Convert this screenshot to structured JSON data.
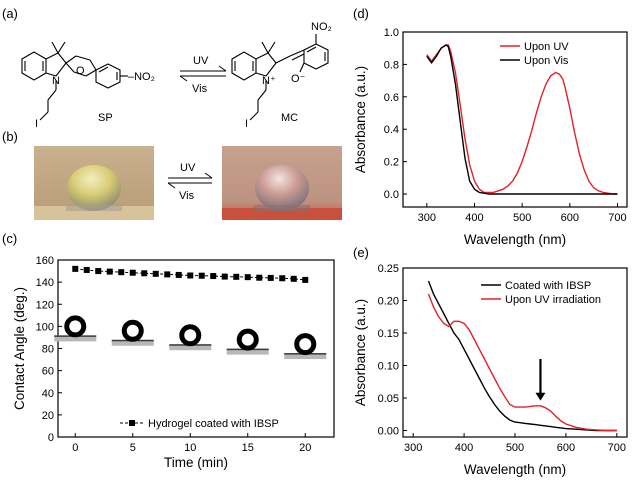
{
  "panels": {
    "a": {
      "label": "(a)",
      "uv_label": "UV",
      "vis_label": "Vis",
      "sp_label": "SP",
      "mc_label": "MC",
      "iodine": "I",
      "nitrogen": "N",
      "oxygen": "O",
      "no2": "NO₂",
      "no2_sp": "–NO₂",
      "n_plus": "N⁺",
      "o_minus": "O⁻"
    },
    "b": {
      "label": "(b)",
      "uv_label": "UV",
      "vis_label": "Vis"
    },
    "c": {
      "label": "(c)"
    },
    "d": {
      "label": "(d)"
    },
    "e": {
      "label": "(e)"
    }
  },
  "colors": {
    "red": "#e3212b",
    "black": "#000000",
    "photo_bg_left": "#c4aa86",
    "photo_bg_right": "#c09a86",
    "substrate_right": "#c8503c"
  },
  "chart_data": [
    {
      "id": "c",
      "type": "scatter",
      "xlabel": "Time (min)",
      "ylabel": "Contact Angle (deg.)",
      "xlim": [
        -1.5,
        22.5
      ],
      "ylim": [
        0,
        160
      ],
      "xticks": [
        0,
        5,
        10,
        15,
        20
      ],
      "yticks": [
        0,
        20,
        40,
        60,
        80,
        100,
        120,
        140,
        160
      ],
      "series": [
        {
          "name": "Hydrogel coated with IBSP",
          "color": "#000000",
          "marker": "square",
          "line": "dashed",
          "x": [
            0,
            1,
            2,
            3,
            4,
            5,
            6,
            7,
            8,
            9,
            10,
            11,
            12,
            13,
            14,
            15,
            16,
            17,
            18,
            19,
            20
          ],
          "y": [
            152,
            151,
            150,
            149.5,
            149,
            148.5,
            148,
            147.5,
            147,
            146.5,
            146,
            145.8,
            145.5,
            145,
            144.8,
            144.5,
            144,
            143.8,
            143.5,
            143,
            142
          ]
        }
      ],
      "legend_position": "bottom-right",
      "droplet_insets": 5
    },
    {
      "id": "d",
      "type": "line",
      "xlabel": "Wavelength (nm)",
      "ylabel": "Absorbance (a.u.)",
      "xlim": [
        250,
        720
      ],
      "ylim": [
        -0.08,
        1.0
      ],
      "xticks": [
        300,
        400,
        500,
        600,
        700
      ],
      "yticks": [
        0.0,
        0.2,
        0.4,
        0.6,
        0.8,
        1.0
      ],
      "series": [
        {
          "name": "Upon UV",
          "color": "#e3212b",
          "x": [
            300,
            310,
            320,
            330,
            340,
            345,
            350,
            360,
            370,
            380,
            390,
            400,
            410,
            420,
            430,
            440,
            450,
            460,
            470,
            480,
            490,
            500,
            510,
            520,
            530,
            540,
            550,
            560,
            570,
            578,
            585,
            590,
            600,
            610,
            620,
            630,
            640,
            650,
            660,
            670,
            680,
            690,
            700
          ],
          "y": [
            0.86,
            0.82,
            0.86,
            0.9,
            0.92,
            0.92,
            0.88,
            0.75,
            0.55,
            0.34,
            0.18,
            0.08,
            0.03,
            0.01,
            0.01,
            0.01,
            0.02,
            0.03,
            0.05,
            0.08,
            0.13,
            0.2,
            0.29,
            0.39,
            0.5,
            0.6,
            0.68,
            0.73,
            0.75,
            0.74,
            0.71,
            0.66,
            0.53,
            0.38,
            0.25,
            0.15,
            0.08,
            0.04,
            0.02,
            0.01,
            0.005,
            0.0,
            0.0
          ]
        },
        {
          "name": "Upon Vis",
          "color": "#000000",
          "x": [
            300,
            310,
            320,
            330,
            340,
            345,
            350,
            360,
            370,
            380,
            390,
            400,
            410,
            420,
            430,
            450,
            500,
            550,
            600,
            650,
            700
          ],
          "y": [
            0.85,
            0.81,
            0.85,
            0.9,
            0.92,
            0.91,
            0.85,
            0.68,
            0.45,
            0.22,
            0.08,
            0.03,
            0.01,
            0.005,
            0.0,
            0.0,
            0.0,
            0.0,
            0.0,
            0.0,
            0.0
          ]
        }
      ],
      "legend_position": "top-right"
    },
    {
      "id": "e",
      "type": "line",
      "xlabel": "Wavelength (nm)",
      "ylabel": "Absorbance (a.u.)",
      "xlim": [
        280,
        720
      ],
      "ylim": [
        -0.01,
        0.25
      ],
      "xticks": [
        300,
        400,
        500,
        600,
        700
      ],
      "yticks": [
        0.0,
        0.05,
        0.1,
        0.15,
        0.2,
        0.25
      ],
      "series": [
        {
          "name": "Coated with IBSP",
          "color": "#000000",
          "x": [
            330,
            340,
            350,
            360,
            370,
            380,
            390,
            400,
            410,
            420,
            430,
            440,
            450,
            460,
            470,
            480,
            490,
            500,
            510,
            520,
            530,
            540,
            550,
            560,
            570,
            580,
            590,
            600,
            620,
            640,
            660,
            680,
            700
          ],
          "y": [
            0.23,
            0.21,
            0.195,
            0.18,
            0.165,
            0.15,
            0.14,
            0.125,
            0.11,
            0.095,
            0.08,
            0.065,
            0.052,
            0.04,
            0.03,
            0.022,
            0.016,
            0.013,
            0.012,
            0.011,
            0.01,
            0.009,
            0.008,
            0.007,
            0.006,
            0.005,
            0.004,
            0.003,
            0.002,
            0.001,
            0.0,
            0.0,
            0.0
          ]
        },
        {
          "name": "Upon UV irradiation",
          "color": "#e3212b",
          "x": [
            330,
            340,
            350,
            355,
            360,
            370,
            380,
            390,
            400,
            410,
            420,
            430,
            440,
            450,
            460,
            470,
            480,
            490,
            500,
            510,
            520,
            530,
            540,
            550,
            560,
            570,
            580,
            590,
            600,
            620,
            640,
            660,
            680,
            700
          ],
          "y": [
            0.21,
            0.19,
            0.175,
            0.17,
            0.165,
            0.16,
            0.168,
            0.168,
            0.165,
            0.155,
            0.14,
            0.125,
            0.11,
            0.095,
            0.08,
            0.065,
            0.052,
            0.04,
            0.036,
            0.036,
            0.036,
            0.037,
            0.038,
            0.038,
            0.035,
            0.03,
            0.022,
            0.015,
            0.01,
            0.005,
            0.002,
            0.001,
            0.0,
            0.0
          ]
        }
      ],
      "legend_position": "top-right",
      "arrow_at_x": 550
    }
  ]
}
